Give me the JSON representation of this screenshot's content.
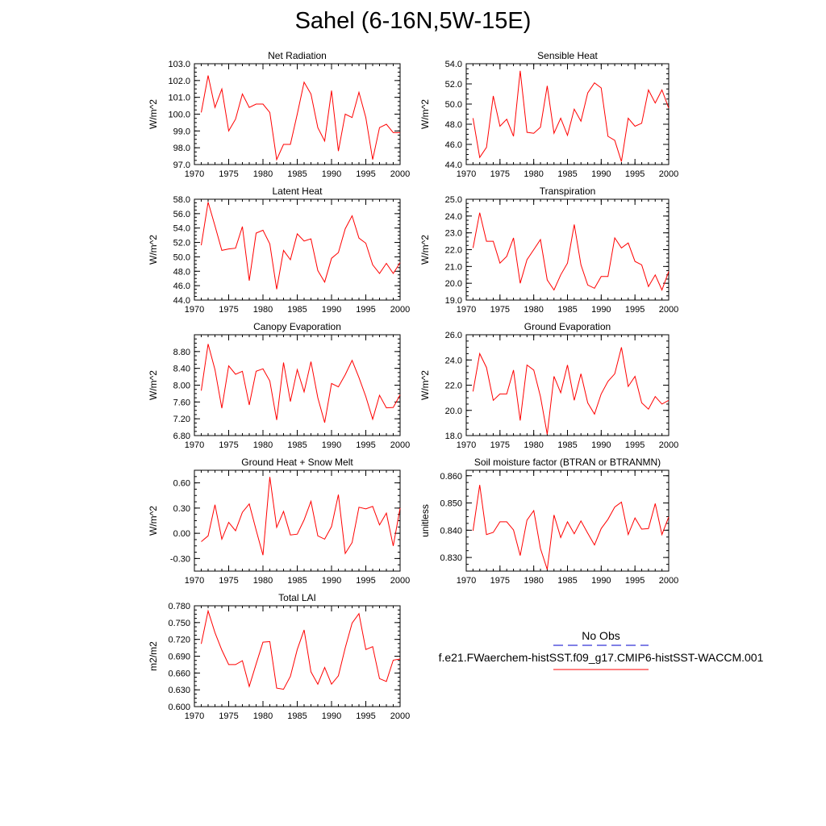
{
  "page_title": "Sahel (6-16N,5W-15E)",
  "colors": {
    "model_line": "#ff0000",
    "obs_line": "#0000cc",
    "axis": "#000000"
  },
  "legend": {
    "obs_label": "No Obs",
    "model_label": "f.e21.FWaerchem-histSST.f09_g17.CMIP6-histSST-WACCM.001"
  },
  "chart_data": [
    {
      "type": "line",
      "title": "Net Radiation",
      "ylabel": "W/m^2",
      "xlabel": "",
      "xlim": [
        1970,
        2000
      ],
      "ylim": [
        97.0,
        103.0
      ],
      "xticks": [
        1970,
        1975,
        1980,
        1985,
        1990,
        1995,
        2000
      ],
      "yticks": [
        "97.0",
        "98.0",
        "99.0",
        "100.0",
        "101.0",
        "102.0",
        "103.0"
      ],
      "grid": false,
      "x": [
        1971,
        1972,
        1973,
        1974,
        1975,
        1976,
        1977,
        1978,
        1979,
        1980,
        1981,
        1982,
        1983,
        1984,
        1985,
        1986,
        1987,
        1988,
        1989,
        1990,
        1991,
        1992,
        1993,
        1994,
        1995,
        1996,
        1997,
        1998,
        1999,
        2000
      ],
      "series": [
        {
          "name": "f.e21.FWaerchem-histSST.f09_g17.CMIP6-histSST-WACCM.001",
          "values": [
            100.1,
            102.3,
            100.4,
            101.5,
            99.0,
            99.7,
            101.2,
            100.4,
            100.6,
            100.6,
            100.1,
            97.3,
            98.2,
            98.2,
            100.0,
            101.9,
            101.2,
            99.2,
            98.4,
            101.4,
            97.8,
            100.0,
            99.8,
            101.3,
            99.8,
            97.3,
            99.2,
            99.4,
            98.9,
            98.9
          ]
        }
      ]
    },
    {
      "type": "line",
      "title": "Sensible Heat",
      "ylabel": "W/m^2",
      "xlabel": "",
      "xlim": [
        1970,
        2000
      ],
      "ylim": [
        44.0,
        54.0
      ],
      "xticks": [
        1970,
        1975,
        1980,
        1985,
        1990,
        1995,
        2000
      ],
      "yticks": [
        "44.0",
        "46.0",
        "48.0",
        "50.0",
        "52.0",
        "54.0"
      ],
      "grid": false,
      "x": [
        1971,
        1972,
        1973,
        1974,
        1975,
        1976,
        1977,
        1978,
        1979,
        1980,
        1981,
        1982,
        1983,
        1984,
        1985,
        1986,
        1987,
        1988,
        1989,
        1990,
        1991,
        1992,
        1993,
        1994,
        1995,
        1996,
        1997,
        1998,
        1999,
        2000
      ],
      "series": [
        {
          "name": "f.e21.FWaerchem-histSST.f09_g17.CMIP6-histSST-WACCM.001",
          "values": [
            48.6,
            44.7,
            45.7,
            50.8,
            47.8,
            48.5,
            46.8,
            53.3,
            47.2,
            47.1,
            47.7,
            51.8,
            47.1,
            48.6,
            46.9,
            49.5,
            48.3,
            51.1,
            52.1,
            51.6,
            46.8,
            46.4,
            44.3,
            48.6,
            47.8,
            48.1,
            51.4,
            50.1,
            51.4,
            49.6
          ]
        }
      ]
    },
    {
      "type": "line",
      "title": "Latent Heat",
      "ylabel": "W/m^2",
      "xlabel": "",
      "xlim": [
        1970,
        2000
      ],
      "ylim": [
        44.0,
        58.0
      ],
      "xticks": [
        1970,
        1975,
        1980,
        1985,
        1990,
        1995,
        2000
      ],
      "yticks": [
        "44.0",
        "46.0",
        "48.0",
        "50.0",
        "52.0",
        "54.0",
        "56.0",
        "58.0"
      ],
      "grid": false,
      "x": [
        1971,
        1972,
        1973,
        1974,
        1975,
        1976,
        1977,
        1978,
        1979,
        1980,
        1981,
        1982,
        1983,
        1984,
        1985,
        1986,
        1987,
        1988,
        1989,
        1990,
        1991,
        1992,
        1993,
        1994,
        1995,
        1996,
        1997,
        1998,
        1999,
        2000
      ],
      "series": [
        {
          "name": "f.e21.FWaerchem-histSST.f09_g17.CMIP6-histSST-WACCM.001",
          "values": [
            51.6,
            57.6,
            54.3,
            50.9,
            51.1,
            51.2,
            54.2,
            46.7,
            53.3,
            53.7,
            51.8,
            45.5,
            50.9,
            49.6,
            53.2,
            52.2,
            52.5,
            48.1,
            46.5,
            49.8,
            50.6,
            53.9,
            55.7,
            52.6,
            51.9,
            48.9,
            47.7,
            49.1,
            47.7,
            49.2
          ]
        }
      ]
    },
    {
      "type": "line",
      "title": "Transpiration",
      "ylabel": "W/m^2",
      "xlabel": "",
      "xlim": [
        1970,
        2000
      ],
      "ylim": [
        19.0,
        25.0
      ],
      "xticks": [
        1970,
        1975,
        1980,
        1985,
        1990,
        1995,
        2000
      ],
      "yticks": [
        "19.0",
        "20.0",
        "21.0",
        "22.0",
        "23.0",
        "24.0",
        "25.0"
      ],
      "grid": false,
      "x": [
        1971,
        1972,
        1973,
        1974,
        1975,
        1976,
        1977,
        1978,
        1979,
        1980,
        1981,
        1982,
        1983,
        1984,
        1985,
        1986,
        1987,
        1988,
        1989,
        1990,
        1991,
        1992,
        1993,
        1994,
        1995,
        1996,
        1997,
        1998,
        1999,
        2000
      ],
      "series": [
        {
          "name": "f.e21.FWaerchem-histSST.f09_g17.CMIP6-histSST-WACCM.001",
          "values": [
            22.1,
            24.2,
            22.5,
            22.5,
            21.2,
            21.6,
            22.7,
            20.0,
            21.4,
            22.0,
            22.6,
            20.2,
            19.6,
            20.5,
            21.2,
            23.5,
            21.1,
            19.9,
            19.7,
            20.4,
            20.4,
            22.7,
            22.1,
            22.4,
            21.3,
            21.1,
            19.8,
            20.5,
            19.6,
            20.7
          ]
        }
      ]
    },
    {
      "type": "line",
      "title": "Canopy Evaporation",
      "ylabel": "W/m^2",
      "xlabel": "",
      "xlim": [
        1970,
        2000
      ],
      "ylim": [
        6.8,
        9.2
      ],
      "xticks": [
        1970,
        1975,
        1980,
        1985,
        1990,
        1995,
        2000
      ],
      "yticks": [
        "6.80",
        "7.20",
        "7.60",
        "8.00",
        "8.40",
        "8.80"
      ],
      "grid": false,
      "x": [
        1971,
        1972,
        1973,
        1974,
        1975,
        1976,
        1977,
        1978,
        1979,
        1980,
        1981,
        1982,
        1983,
        1984,
        1985,
        1986,
        1987,
        1988,
        1989,
        1990,
        1991,
        1992,
        1993,
        1994,
        1995,
        1996,
        1997,
        1998,
        1999,
        2000
      ],
      "series": [
        {
          "name": "f.e21.FWaerchem-histSST.f09_g17.CMIP6-histSST-WACCM.001",
          "values": [
            7.87,
            8.98,
            8.37,
            7.45,
            8.46,
            8.26,
            8.33,
            7.53,
            8.33,
            8.39,
            8.1,
            7.17,
            8.54,
            7.61,
            8.37,
            7.84,
            8.56,
            7.7,
            7.11,
            8.04,
            7.96,
            8.25,
            8.59,
            8.18,
            7.73,
            7.19,
            7.76,
            7.46,
            7.47,
            7.77
          ]
        }
      ]
    },
    {
      "type": "line",
      "title": "Ground Evaporation",
      "ylabel": "W/m^2",
      "xlabel": "",
      "xlim": [
        1970,
        2000
      ],
      "ylim": [
        18.0,
        26.0
      ],
      "xticks": [
        1970,
        1975,
        1980,
        1985,
        1990,
        1995,
        2000
      ],
      "yticks": [
        "18.0",
        "20.0",
        "22.0",
        "24.0",
        "26.0"
      ],
      "grid": false,
      "x": [
        1971,
        1972,
        1973,
        1974,
        1975,
        1976,
        1977,
        1978,
        1979,
        1980,
        1981,
        1982,
        1983,
        1984,
        1985,
        1986,
        1987,
        1988,
        1989,
        1990,
        1991,
        1992,
        1993,
        1994,
        1995,
        1996,
        1997,
        1998,
        1999,
        2000
      ],
      "series": [
        {
          "name": "f.e21.FWaerchem-histSST.f09_g17.CMIP6-histSST-WACCM.001",
          "values": [
            21.5,
            24.5,
            23.4,
            20.8,
            21.3,
            21.3,
            23.2,
            19.2,
            23.6,
            23.2,
            21.1,
            18.1,
            22.7,
            21.4,
            23.6,
            20.8,
            22.9,
            20.6,
            19.7,
            21.3,
            22.3,
            22.9,
            25.0,
            21.9,
            22.7,
            20.6,
            20.1,
            21.1,
            20.5,
            20.8
          ]
        }
      ]
    },
    {
      "type": "line",
      "title": "Ground Heat + Snow Melt",
      "ylabel": "W/m^2",
      "xlabel": "",
      "xlim": [
        1970,
        2000
      ],
      "ylim": [
        -0.45,
        0.75
      ],
      "xticks": [
        1970,
        1975,
        1980,
        1985,
        1990,
        1995,
        2000
      ],
      "yticks": [
        "-0.30",
        "0.00",
        "0.30",
        "0.60"
      ],
      "grid": false,
      "x": [
        1971,
        1972,
        1973,
        1974,
        1975,
        1976,
        1977,
        1978,
        1979,
        1980,
        1981,
        1982,
        1983,
        1984,
        1985,
        1986,
        1987,
        1988,
        1989,
        1990,
        1991,
        1992,
        1993,
        1994,
        1995,
        1996,
        1997,
        1998,
        1999,
        2000
      ],
      "series": [
        {
          "name": "f.e21.FWaerchem-histSST.f09_g17.CMIP6-histSST-WACCM.001",
          "values": [
            -0.1,
            -0.03,
            0.34,
            -0.07,
            0.13,
            0.03,
            0.25,
            0.35,
            0.04,
            -0.26,
            0.67,
            0.07,
            0.26,
            -0.02,
            -0.01,
            0.16,
            0.38,
            -0.03,
            -0.07,
            0.08,
            0.46,
            -0.24,
            -0.11,
            0.31,
            0.29,
            0.32,
            0.1,
            0.24,
            -0.15,
            0.3
          ]
        }
      ]
    },
    {
      "type": "line",
      "title": "Soil moisture factor (BTRAN or BTRANMN)",
      "ylabel": "unitless",
      "xlabel": "",
      "xlim": [
        1970,
        2000
      ],
      "ylim": [
        0.825,
        0.862
      ],
      "xticks": [
        1970,
        1975,
        1980,
        1985,
        1990,
        1995,
        2000
      ],
      "yticks": [
        "0.830",
        "0.840",
        "0.850",
        "0.860"
      ],
      "grid": false,
      "x": [
        1971,
        1972,
        1973,
        1974,
        1975,
        1976,
        1977,
        1978,
        1979,
        1980,
        1981,
        1982,
        1983,
        1984,
        1985,
        1986,
        1987,
        1988,
        1989,
        1990,
        1991,
        1992,
        1993,
        1994,
        1995,
        1996,
        1997,
        1998,
        1999,
        2000
      ],
      "series": [
        {
          "name": "f.e21.FWaerchem-histSST.f09_g17.CMIP6-histSST-WACCM.001",
          "values": [
            0.8398,
            0.8566,
            0.8384,
            0.8392,
            0.8431,
            0.8431,
            0.8401,
            0.8307,
            0.8437,
            0.8472,
            0.8333,
            0.8256,
            0.8456,
            0.8373,
            0.8431,
            0.8387,
            0.8434,
            0.8389,
            0.8346,
            0.8406,
            0.844,
            0.8485,
            0.8503,
            0.8384,
            0.8445,
            0.8404,
            0.8406,
            0.8498,
            0.8384,
            0.8449
          ]
        }
      ]
    },
    {
      "type": "line",
      "title": "Total LAI",
      "ylabel": "m2/m2",
      "xlabel": "",
      "xlim": [
        1970,
        2000
      ],
      "ylim": [
        0.6,
        0.78
      ],
      "xticks": [
        1970,
        1975,
        1980,
        1985,
        1990,
        1995,
        2000
      ],
      "yticks": [
        "0.600",
        "0.630",
        "0.660",
        "0.690",
        "0.720",
        "0.750",
        "0.780"
      ],
      "grid": false,
      "x": [
        1971,
        1972,
        1973,
        1974,
        1975,
        1976,
        1977,
        1978,
        1979,
        1980,
        1981,
        1982,
        1983,
        1984,
        1985,
        1986,
        1987,
        1988,
        1989,
        1990,
        1991,
        1992,
        1993,
        1994,
        1995,
        1996,
        1997,
        1998,
        1999,
        2000
      ],
      "series": [
        {
          "name": "f.e21.FWaerchem-histSST.f09_g17.CMIP6-histSST-WACCM.001",
          "values": [
            0.712,
            0.771,
            0.732,
            0.701,
            0.675,
            0.675,
            0.682,
            0.636,
            0.676,
            0.715,
            0.716,
            0.633,
            0.631,
            0.654,
            0.702,
            0.737,
            0.662,
            0.64,
            0.67,
            0.64,
            0.655,
            0.705,
            0.749,
            0.766,
            0.702,
            0.707,
            0.65,
            0.645,
            0.683,
            0.685
          ]
        }
      ]
    }
  ]
}
